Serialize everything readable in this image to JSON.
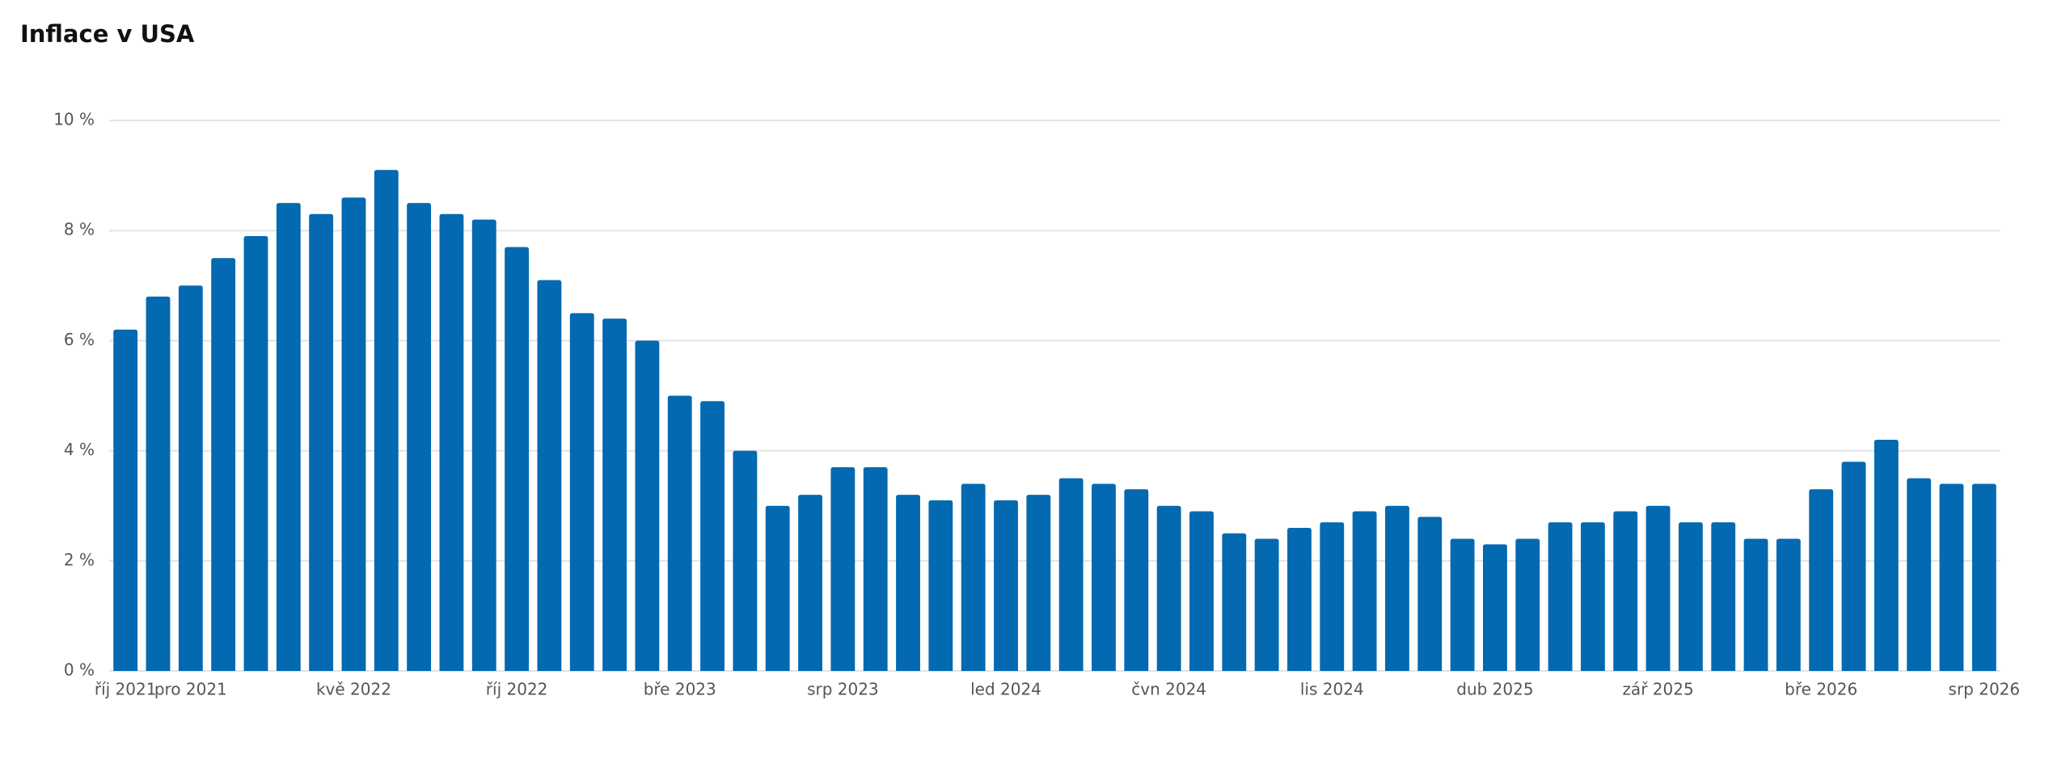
{
  "chart_data": {
    "type": "bar",
    "title": "Inflace v USA",
    "categories": [
      "říj 2021",
      null,
      "pro 2021",
      null,
      null,
      null,
      null,
      "kvě 2022",
      null,
      null,
      null,
      null,
      "říj 2022",
      null,
      null,
      null,
      null,
      "bře 2023",
      null,
      null,
      null,
      null,
      "srp 2023",
      null,
      null,
      null,
      null,
      "led 2024",
      null,
      null,
      null,
      null,
      "čvn 2024",
      null,
      null,
      null,
      null,
      "lis 2024",
      null,
      null,
      null,
      null,
      "dub 2025",
      null,
      null,
      null,
      null,
      "zář 2025",
      null,
      null,
      null,
      null,
      "bře 2026",
      null,
      null,
      null,
      null,
      "srp 2026"
    ],
    "values": [
      6.2,
      6.8,
      7.0,
      7.5,
      7.9,
      8.5,
      8.3,
      8.6,
      9.1,
      8.5,
      8.3,
      8.2,
      7.7,
      7.1,
      6.5,
      6.4,
      6.0,
      5.0,
      4.9,
      4.0,
      3.0,
      3.2,
      3.7,
      3.7,
      3.2,
      3.1,
      3.4,
      3.1,
      3.2,
      3.5,
      3.4,
      3.3,
      3.0,
      2.9,
      2.5,
      2.4,
      2.6,
      2.7,
      2.9,
      3.0,
      2.8,
      2.4,
      2.3,
      2.4,
      2.7,
      2.7,
      2.9,
      3.0,
      2.7,
      2.7,
      2.4,
      2.4,
      3.3,
      3.8,
      4.2,
      3.5,
      3.4,
      3.4
    ],
    "color": "#0369b1",
    "ylim": [
      0,
      10
    ],
    "yticks": [
      {
        "value": 0,
        "label": "0 %"
      },
      {
        "value": 2,
        "label": "2 %"
      },
      {
        "value": 4,
        "label": "4 %"
      },
      {
        "value": 6,
        "label": "6 %"
      },
      {
        "value": 8,
        "label": "8 %"
      },
      {
        "value": 10,
        "label": "10 %"
      }
    ],
    "grid": true
  }
}
